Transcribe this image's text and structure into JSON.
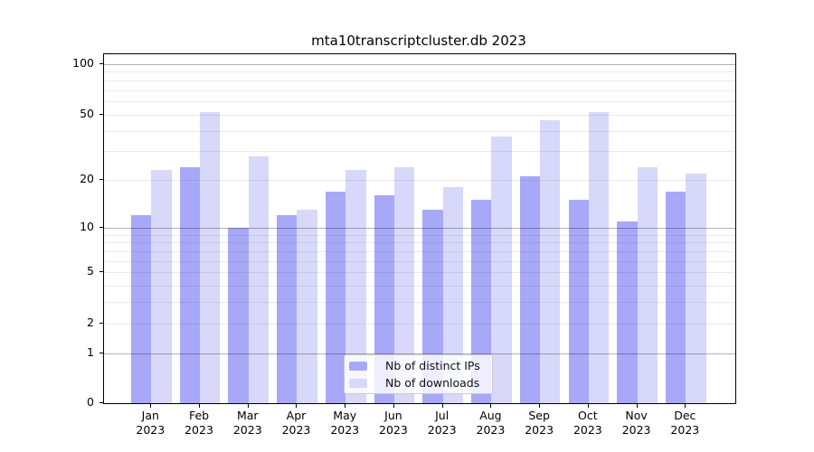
{
  "title": "mta10transcriptcluster.db 2023",
  "chart_data": {
    "type": "bar",
    "title": "mta10transcriptcluster.db 2023",
    "categories": [
      "Jan 2023",
      "Feb 2023",
      "Mar 2023",
      "Apr 2023",
      "May 2023",
      "Jun 2023",
      "Jul 2023",
      "Aug 2023",
      "Sep 2023",
      "Oct 2023",
      "Nov 2023",
      "Dec 2023"
    ],
    "series": [
      {
        "name": "Nb of distinct IPs",
        "color": "#a8a8f8",
        "values": [
          12,
          24,
          10,
          12,
          17,
          16,
          13,
          15,
          21,
          15,
          11,
          17
        ]
      },
      {
        "name": "Nb of downloads",
        "color": "#d8d8fa",
        "values": [
          23,
          52,
          28,
          13,
          23,
          24,
          18,
          37,
          46,
          52,
          24,
          22
        ]
      }
    ],
    "xlabel": "",
    "ylabel": "",
    "yscale": "log10(value+1)",
    "ylim": [
      0,
      115
    ],
    "yticks_labeled": [
      100,
      50,
      20,
      10,
      5,
      2,
      1,
      0
    ],
    "gridlines_major": [
      1,
      10,
      100
    ],
    "gridlines_minor": [
      2,
      3,
      4,
      5,
      6,
      7,
      8,
      9,
      20,
      30,
      40,
      50,
      60,
      70,
      80,
      90
    ],
    "grid": true,
    "legend_position": "lower center inside plot"
  },
  "legend": {
    "items": [
      {
        "label": "Nb of distinct IPs",
        "color": "#a8a8f8"
      },
      {
        "label": "Nb of downloads",
        "color": "#d8d8fa"
      }
    ]
  }
}
